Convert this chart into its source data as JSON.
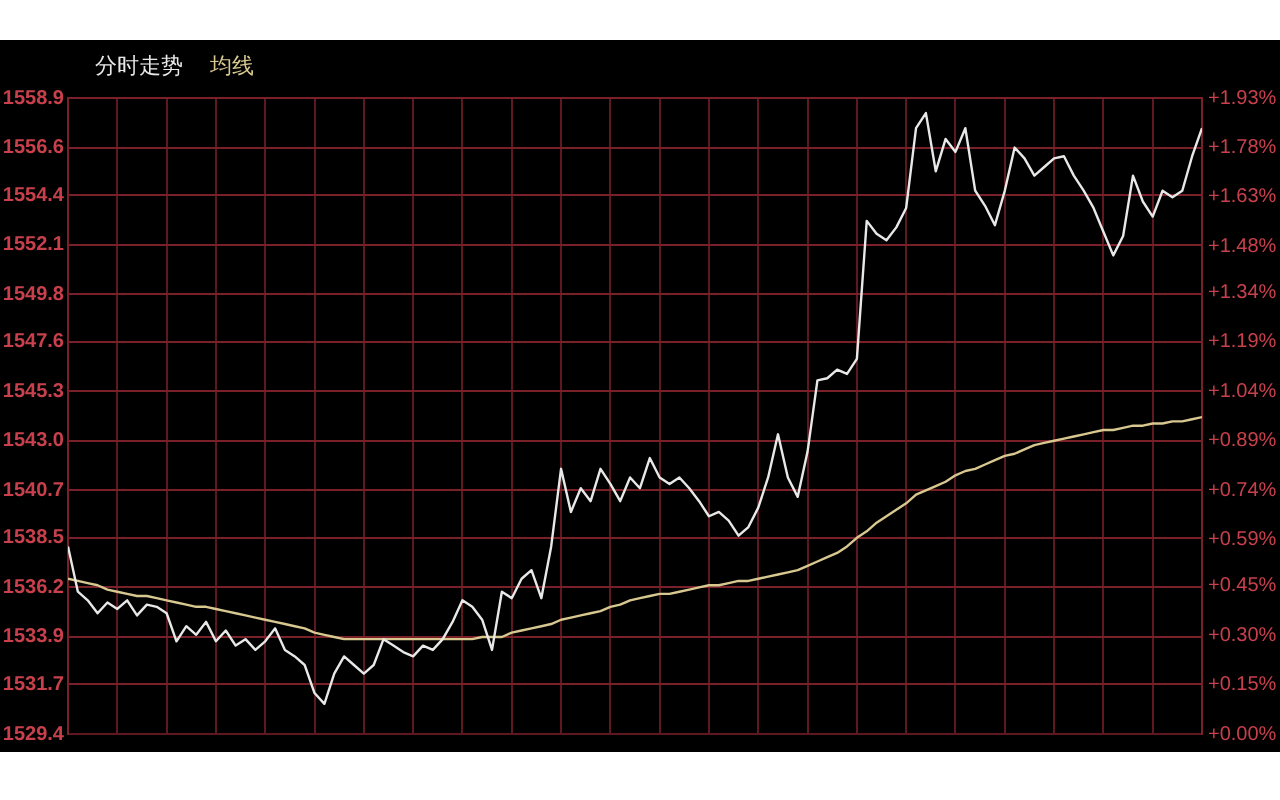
{
  "chart_data": {
    "type": "line",
    "legend": "top left",
    "grid": true,
    "marker": "none",
    "tick_labels": "y",
    "categories": [
      null,
      null,
      null,
      null,
      null,
      null,
      null,
      null,
      null,
      null,
      null,
      null,
      null,
      null,
      null,
      null,
      null,
      null,
      null,
      null,
      null,
      null,
      null,
      null,
      null,
      null,
      null,
      null,
      null,
      null,
      null,
      null,
      null,
      null,
      null,
      null,
      null,
      null,
      null,
      null,
      null,
      null,
      null,
      null,
      null,
      null,
      null,
      null,
      null,
      null,
      null,
      null,
      null,
      null,
      null,
      null,
      null,
      null,
      null,
      null,
      null,
      null,
      null,
      null,
      null,
      null,
      null,
      null,
      null,
      null,
      null,
      null,
      null,
      null,
      null,
      null,
      null,
      null,
      null,
      null,
      null,
      null,
      null,
      null,
      null,
      null,
      null,
      null,
      null,
      null,
      null,
      null,
      null,
      null,
      null,
      null,
      null,
      null,
      null,
      null,
      null,
      null,
      null,
      null,
      null,
      null,
      null,
      null,
      null,
      null,
      null,
      null,
      null,
      null,
      null,
      null
    ],
    "ylim": [
      1529.4,
      1558.9
    ],
    "yticks": [
      {
        "value": 1529.4,
        "label": "1529.4"
      },
      {
        "value": 1531.7,
        "label": "1531.7"
      },
      {
        "value": 1533.9,
        "label": "1533.9"
      },
      {
        "value": 1536.2,
        "label": "1536.2"
      },
      {
        "value": 1538.5,
        "label": "1538.5"
      },
      {
        "value": 1540.7,
        "label": "1540.7"
      },
      {
        "value": 1543.0,
        "label": "1543.0"
      },
      {
        "value": 1545.3,
        "label": "1545.3"
      },
      {
        "value": 1547.6,
        "label": "1547.6"
      },
      {
        "value": 1549.8,
        "label": "1549.8"
      },
      {
        "value": 1552.1,
        "label": "1552.1"
      },
      {
        "value": 1554.4,
        "label": "1554.4"
      },
      {
        "value": 1556.6,
        "label": "1556.6"
      },
      {
        "value": 1558.9,
        "label": "1558.9"
      }
    ],
    "y2lim": [
      0,
      1.93
    ],
    "y2ticks": [
      {
        "value": 0,
        "label": "+0.00%"
      },
      {
        "value": 0.15,
        "label": "+0.15%"
      },
      {
        "value": 0.3,
        "label": "+0.30%"
      },
      {
        "value": 0.45,
        "label": "+0.45%"
      },
      {
        "value": 0.59,
        "label": "+0.59%"
      },
      {
        "value": 0.74,
        "label": "+0.74%"
      },
      {
        "value": 0.89,
        "label": "+0.89%"
      },
      {
        "value": 1.04,
        "label": "+1.04%"
      },
      {
        "value": 1.19,
        "label": "+1.19%"
      },
      {
        "value": 1.34,
        "label": "+1.34%"
      },
      {
        "value": 1.48,
        "label": "+1.48%"
      },
      {
        "value": 1.63,
        "label": "+1.63%"
      },
      {
        "value": 1.78,
        "label": "+1.78%"
      },
      {
        "value": 1.93,
        "label": "+1.93%"
      }
    ],
    "series": [
      {
        "name": "分时走势",
        "color": "#e8e8e8",
        "values": [
          1538.1,
          1536.0,
          1535.6,
          1535.0,
          1535.5,
          1535.2,
          1535.6,
          1534.9,
          1535.4,
          1535.3,
          1535.0,
          1533.7,
          1534.4,
          1534.0,
          1534.6,
          1533.7,
          1534.2,
          1533.5,
          1533.8,
          1533.3,
          1533.7,
          1534.3,
          1533.3,
          1533.0,
          1532.6,
          1531.3,
          1530.8,
          1532.2,
          1533.0,
          1532.6,
          1532.2,
          1532.6,
          1533.8,
          1533.5,
          1533.2,
          1533.0,
          1533.5,
          1533.3,
          1533.8,
          1534.6,
          1535.6,
          1535.3,
          1534.7,
          1533.3,
          1536.0,
          1535.7,
          1536.6,
          1537.0,
          1535.7,
          1538.1,
          1541.7,
          1539.7,
          1540.8,
          1540.2,
          1541.7,
          1541.0,
          1540.2,
          1541.3,
          1540.8,
          1542.2,
          1541.3,
          1541.0,
          1541.3,
          1540.8,
          1540.2,
          1539.5,
          1539.7,
          1539.3,
          1538.6,
          1539.0,
          1539.9,
          1541.3,
          1543.3,
          1541.3,
          1540.4,
          1542.5,
          1545.8,
          1545.9,
          1546.3,
          1546.1,
          1546.8,
          1553.2,
          1552.6,
          1552.3,
          1552.9,
          1553.8,
          1557.5,
          1558.2,
          1555.5,
          1557.0,
          1556.4,
          1557.5,
          1554.6,
          1553.9,
          1553.0,
          1554.6,
          1556.6,
          1556.1,
          1555.3,
          1555.7,
          1556.1,
          1556.2,
          1555.3,
          1554.6,
          1553.8,
          1552.7,
          1551.6,
          1552.5,
          1555.3,
          1554.1,
          1553.4,
          1554.6,
          1554.3,
          1554.6,
          1556.2,
          1557.5
        ]
      },
      {
        "name": "均线",
        "color": "#d8c890",
        "values": [
          1536.6,
          1536.5,
          1536.4,
          1536.3,
          1536.1,
          1536.0,
          1535.9,
          1535.8,
          1535.8,
          1535.7,
          1535.6,
          1535.5,
          1535.4,
          1535.3,
          1535.3,
          1535.2,
          1535.1,
          1535.0,
          1534.9,
          1534.8,
          1534.7,
          1534.6,
          1534.5,
          1534.4,
          1534.3,
          1534.1,
          1534.0,
          1533.9,
          1533.8,
          1533.8,
          1533.8,
          1533.8,
          1533.8,
          1533.8,
          1533.8,
          1533.8,
          1533.8,
          1533.8,
          1533.8,
          1533.8,
          1533.8,
          1533.8,
          1533.9,
          1533.9,
          1533.9,
          1534.1,
          1534.2,
          1534.3,
          1534.4,
          1534.5,
          1534.7,
          1534.8,
          1534.9,
          1535.0,
          1535.1,
          1535.3,
          1535.4,
          1535.6,
          1535.7,
          1535.8,
          1535.9,
          1535.9,
          1536.0,
          1536.1,
          1536.2,
          1536.3,
          1536.3,
          1536.4,
          1536.5,
          1536.5,
          1536.6,
          1536.7,
          1536.8,
          1536.9,
          1537.0,
          1537.2,
          1537.4,
          1537.6,
          1537.8,
          1538.1,
          1538.5,
          1538.8,
          1539.2,
          1539.5,
          1539.8,
          1540.1,
          1540.5,
          1540.7,
          1540.9,
          1541.1,
          1541.4,
          1541.6,
          1541.7,
          1541.9,
          1542.1,
          1542.3,
          1542.4,
          1542.6,
          1542.8,
          1542.9,
          1543.0,
          1543.1,
          1543.2,
          1543.3,
          1543.4,
          1543.5,
          1543.5,
          1543.6,
          1543.7,
          1543.7,
          1543.8,
          1543.8,
          1543.9,
          1543.9,
          1544.0,
          1544.1
        ]
      }
    ]
  }
}
